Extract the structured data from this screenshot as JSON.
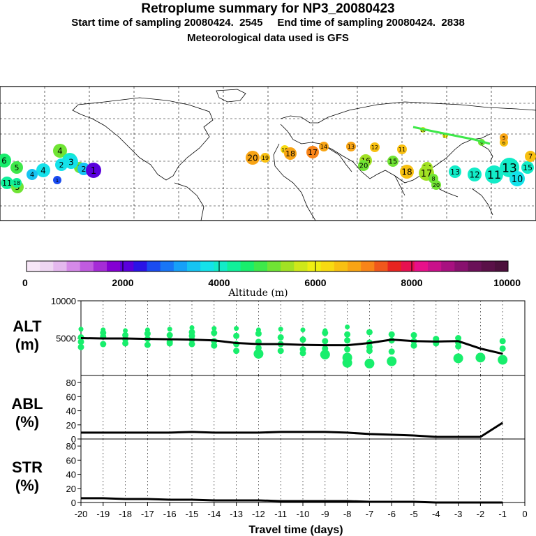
{
  "header": {
    "title": "Retroplume summary for NP3_20080423",
    "start_label": "Start time of sampling 20080424.  2545",
    "end_label": "End time of sampling 20080424.  2838",
    "met_label": "Meteorological data used is GFS"
  },
  "colorbar": {
    "title": "Altitude (m)",
    "ticks": [
      "0",
      "2000",
      "4000",
      "6000",
      "8000",
      "10000"
    ],
    "colors": [
      "#f7e6f7",
      "#eed6f2",
      "#e4b8ee",
      "#d58ae8",
      "#c05cdf",
      "#a52cd6",
      "#8400d2",
      "#5a00dc",
      "#2a14e6",
      "#1a4cf0",
      "#1976f6",
      "#17a0f8",
      "#16c4f2",
      "#14e2ea",
      "#12ecc8",
      "#10f09a",
      "#18ee6c",
      "#3ee84a",
      "#70e434",
      "#a2e224",
      "#cee81a",
      "#eeee12",
      "#f8da12",
      "#f8c012",
      "#f8a414",
      "#f88418",
      "#f0581c",
      "#e82420",
      "#e81050",
      "#e8108a",
      "#c8108a",
      "#a81080",
      "#88106e",
      "#6a1058",
      "#5a1048",
      "#4c103c"
    ]
  },
  "map": {
    "labels": [
      {
        "t": "6",
        "a": 4700
      },
      {
        "t": "5",
        "a": 4800
      },
      {
        "t": "4",
        "a": 5100
      },
      {
        "t": "3",
        "a": 3900
      },
      {
        "t": "2",
        "a": 3700
      },
      {
        "t": "11",
        "a": 4300
      },
      {
        "t": "5",
        "a": 5000
      },
      {
        "t": "4",
        "a": 3800
      },
      {
        "t": "1",
        "a": 2600
      },
      {
        "t": "7",
        "a": 5200
      },
      {
        "t": "3",
        "a": 3800
      },
      {
        "t": "2",
        "a": 3400
      },
      {
        "t": "1",
        "a": 2100
      },
      {
        "t": "18",
        "a": 4300
      },
      {
        "t": "4",
        "a": 3600
      },
      {
        "t": "20",
        "a": 6800
      },
      {
        "t": "19",
        "a": 6400
      },
      {
        "t": "16",
        "a": 6300
      },
      {
        "t": "18",
        "a": 6900
      },
      {
        "t": "14",
        "a": 6900
      },
      {
        "t": "17",
        "a": 7000
      },
      {
        "t": "13",
        "a": 6700
      },
      {
        "t": "12",
        "a": 6600
      },
      {
        "t": "11",
        "a": 6600
      },
      {
        "t": "16",
        "a": 5300
      },
      {
        "t": "20",
        "a": 5000
      },
      {
        "t": "15",
        "a": 5200
      },
      {
        "t": "18",
        "a": 6400
      },
      {
        "t": "14",
        "a": 5500
      },
      {
        "t": "17",
        "a": 5300
      },
      {
        "t": "8",
        "a": 5100
      },
      {
        "t": "20",
        "a": 5200
      },
      {
        "t": "13",
        "a": 4100
      },
      {
        "t": "12",
        "a": 4000
      },
      {
        "t": "11",
        "a": 3900
      },
      {
        "t": "13",
        "a": 3900
      },
      {
        "t": "10",
        "a": 3800
      },
      {
        "t": "15",
        "a": 4000
      },
      {
        "t": "7",
        "a": 6500
      },
      {
        "t": "9",
        "a": 5200
      },
      {
        "t": "6",
        "a": 6500
      },
      {
        "t": "5",
        "a": 6800
      },
      {
        "t": "16",
        "a": 5800
      },
      {
        "t": "17",
        "a": 6100
      }
    ]
  },
  "chart_data": [
    {
      "type": "line",
      "panel": "altitude",
      "ylabel_line1": "ALT",
      "ylabel_line2": "(m)",
      "ylim": [
        0,
        10000
      ],
      "yticks": [
        "5000",
        "10000"
      ],
      "x": [
        -20,
        -19,
        -18,
        -17,
        -16,
        -15,
        -14,
        -13,
        -12,
        -11,
        -10,
        -9,
        -8,
        -7,
        -6,
        -5,
        -4,
        -3,
        -2,
        -1
      ],
      "series": [
        {
          "name": "mean altitude",
          "values": [
            5000,
            4950,
            4950,
            4900,
            4850,
            4800,
            4700,
            4350,
            4200,
            4200,
            4100,
            4050,
            4050,
            4350,
            4800,
            4600,
            4550,
            4600,
            3600,
            2900
          ]
        }
      ],
      "scatter": [
        [
          -20,
          6200
        ],
        [
          -20,
          5100
        ],
        [
          -20,
          4500
        ],
        [
          -20,
          3800
        ],
        [
          -19,
          6100
        ],
        [
          -19,
          5700
        ],
        [
          -19,
          5200
        ],
        [
          -19,
          4200
        ],
        [
          -18,
          6000
        ],
        [
          -18,
          5400
        ],
        [
          -18,
          4900
        ],
        [
          -18,
          4300
        ],
        [
          -17,
          6100
        ],
        [
          -17,
          5600
        ],
        [
          -17,
          4900
        ],
        [
          -17,
          4100
        ],
        [
          -16,
          6200
        ],
        [
          -16,
          5400
        ],
        [
          -16,
          4500
        ],
        [
          -16,
          4300
        ],
        [
          -15,
          6400
        ],
        [
          -15,
          5800
        ],
        [
          -15,
          5300
        ],
        [
          -15,
          4800
        ],
        [
          -15,
          4200
        ],
        [
          -14,
          6300
        ],
        [
          -14,
          5700
        ],
        [
          -14,
          4600
        ],
        [
          -14,
          4000
        ],
        [
          -13,
          6300
        ],
        [
          -13,
          5300
        ],
        [
          -13,
          4200
        ],
        [
          -13,
          3300
        ],
        [
          -12,
          6100
        ],
        [
          -12,
          5600
        ],
        [
          -12,
          4500
        ],
        [
          -12,
          3700
        ],
        [
          -12,
          2900
        ],
        [
          -11,
          6200
        ],
        [
          -11,
          5100
        ],
        [
          -11,
          4200
        ],
        [
          -11,
          3300
        ],
        [
          -10,
          6100
        ],
        [
          -10,
          4800
        ],
        [
          -10,
          3500
        ],
        [
          -10,
          3000
        ],
        [
          -9,
          6000
        ],
        [
          -9,
          5700
        ],
        [
          -9,
          4600
        ],
        [
          -9,
          3600
        ],
        [
          -9,
          2800
        ],
        [
          -8,
          6500
        ],
        [
          -8,
          5500
        ],
        [
          -8,
          4700
        ],
        [
          -8,
          3500
        ],
        [
          -8,
          2400
        ],
        [
          -8,
          1700
        ],
        [
          -7,
          5800
        ],
        [
          -7,
          4400
        ],
        [
          -7,
          3800
        ],
        [
          -7,
          3300
        ],
        [
          -7,
          1600
        ],
        [
          -6,
          5500
        ],
        [
          -6,
          4700
        ],
        [
          -6,
          3200
        ],
        [
          -6,
          1900
        ],
        [
          -5,
          5400
        ],
        [
          -5,
          4600
        ],
        [
          -5,
          4000
        ],
        [
          -4,
          4900
        ],
        [
          -4,
          4300
        ],
        [
          -3,
          5000
        ],
        [
          -3,
          4400
        ],
        [
          -3,
          3900
        ],
        [
          -3,
          2300
        ],
        [
          -2,
          2400
        ],
        [
          -1,
          2100
        ],
        [
          -1,
          3600
        ],
        [
          -1,
          4600
        ]
      ]
    },
    {
      "type": "line",
      "panel": "abl",
      "ylabel_line1": "ABL",
      "ylabel_line2": "(%)",
      "ylim": [
        0,
        90
      ],
      "yticks": [
        "0",
        "20",
        "40",
        "60",
        "80"
      ],
      "x": [
        -20,
        -19,
        -18,
        -17,
        -16,
        -15,
        -14,
        -13,
        -12,
        -11,
        -10,
        -9,
        -8,
        -7,
        -6,
        -5,
        -4,
        -3,
        -2,
        -1
      ],
      "series": [
        {
          "name": "abl fraction",
          "values": [
            9,
            9,
            9,
            9,
            9,
            10,
            9,
            9,
            9,
            10,
            10,
            10,
            9,
            7,
            6,
            5,
            3,
            3,
            3,
            23
          ]
        }
      ]
    },
    {
      "type": "line",
      "panel": "stratosphere",
      "ylabel_line1": "STR",
      "ylabel_line2": "(%)",
      "ylim": [
        0,
        90
      ],
      "yticks": [
        "0",
        "20",
        "40",
        "60",
        "80"
      ],
      "x": [
        -20,
        -19,
        -18,
        -17,
        -16,
        -15,
        -14,
        -13,
        -12,
        -11,
        -10,
        -9,
        -8,
        -7,
        -6,
        -5,
        -4,
        -3,
        -2,
        -1
      ],
      "series": [
        {
          "name": "stratospheric fraction",
          "values": [
            6,
            6,
            5,
            5,
            4,
            4,
            3,
            3,
            3,
            2,
            2,
            2,
            2,
            1,
            1,
            1,
            0,
            0,
            0,
            0
          ]
        }
      ],
      "xlabel": "Travel time (days)",
      "xtick_labels": [
        "-20",
        "-19",
        "-18",
        "-17",
        "-16",
        "-15",
        "-14",
        "-13",
        "-12",
        "-11",
        "-10",
        "-9",
        "-8",
        "-7",
        "-6",
        "-5",
        "-4",
        "-3",
        "-2",
        "-1",
        "0"
      ]
    }
  ]
}
